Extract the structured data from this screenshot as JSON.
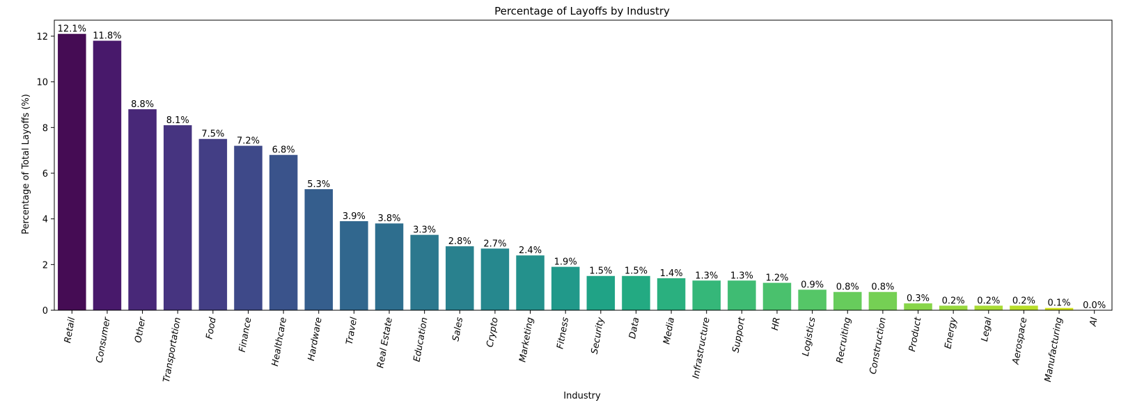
{
  "chart_data": {
    "type": "bar",
    "title": "Percentage of Layoffs by Industry",
    "xlabel": "Industry",
    "ylabel": "Percentage of Total Layoffs (%)",
    "ylim": [
      0,
      12.7
    ],
    "yticks": [
      0,
      2,
      4,
      6,
      8,
      10,
      12
    ],
    "grid": false,
    "categories": [
      "Retail",
      "Consumer",
      "Other",
      "Transportation",
      "Food",
      "Finance",
      "Healthcare",
      "Hardware",
      "Travel",
      "Real Estate",
      "Education",
      "Sales",
      "Crypto",
      "Marketing",
      "Fitness",
      "Security",
      "Data",
      "Media",
      "Infrastructure",
      "Support",
      "HR",
      "Logistics",
      "Recruiting",
      "Construction",
      "Product",
      "Energy",
      "Legal",
      "Aerospace",
      "Manufacturing",
      "AI"
    ],
    "values": [
      12.1,
      11.8,
      8.8,
      8.1,
      7.5,
      7.2,
      6.8,
      5.3,
      3.9,
      3.8,
      3.3,
      2.8,
      2.7,
      2.4,
      1.9,
      1.5,
      1.5,
      1.4,
      1.3,
      1.3,
      1.2,
      0.9,
      0.8,
      0.8,
      0.3,
      0.2,
      0.2,
      0.2,
      0.1,
      0.0
    ],
    "value_labels": [
      "12.1%",
      "11.8%",
      "8.8%",
      "8.1%",
      "7.5%",
      "7.2%",
      "6.8%",
      "5.3%",
      "3.9%",
      "3.8%",
      "3.3%",
      "2.8%",
      "2.7%",
      "2.4%",
      "1.9%",
      "1.5%",
      "1.5%",
      "1.4%",
      "1.3%",
      "1.3%",
      "1.2%",
      "0.9%",
      "0.8%",
      "0.8%",
      "0.3%",
      "0.2%",
      "0.2%",
      "0.2%",
      "0.1%",
      "0.0%"
    ],
    "colors": [
      "#450c54",
      "#48196b",
      "#482878",
      "#463480",
      "#433e85",
      "#3e4989",
      "#3a538b",
      "#355e8d",
      "#31678e",
      "#2e6e8e",
      "#2c788e",
      "#29818e",
      "#26888e",
      "#24918c",
      "#21998a",
      "#20a386",
      "#23aa82",
      "#2ab07f",
      "#35b779",
      "#3fbc73",
      "#4ac16d",
      "#55c667",
      "#67cc5c",
      "#75d054",
      "#87d549",
      "#98d83e",
      "#a8db34",
      "#b8de29",
      "#cfe11c",
      "#e0e318"
    ]
  }
}
